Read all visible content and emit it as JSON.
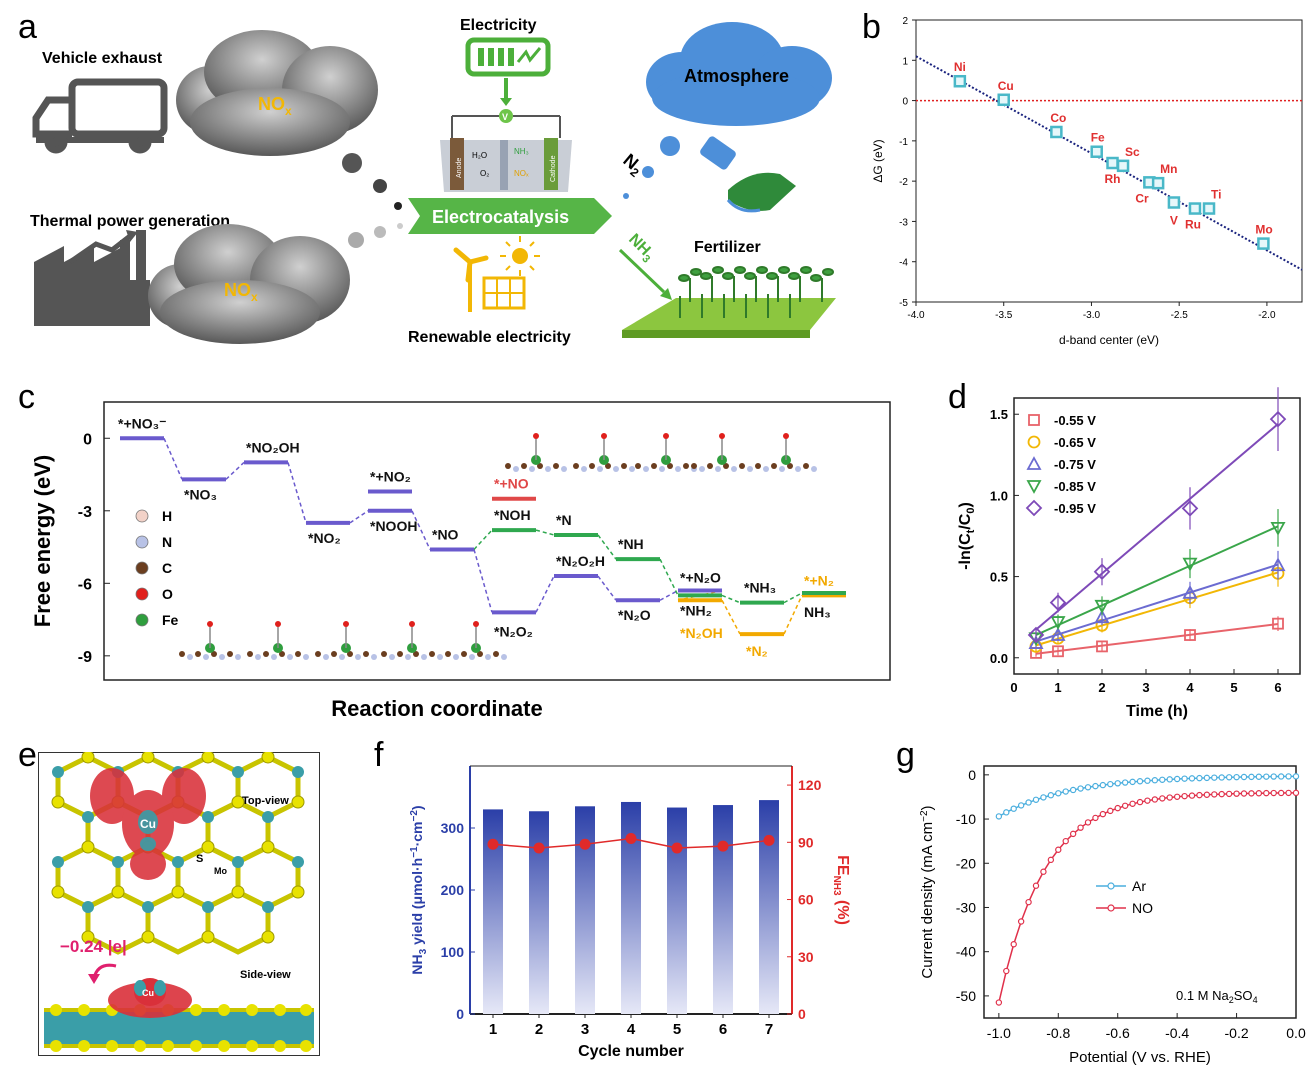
{
  "panels": {
    "a": "a",
    "b": "b",
    "c": "c",
    "d": "d",
    "e": "e",
    "f": "f",
    "g": "g"
  },
  "panel_a": {
    "vehicle": "Vehicle exhaust",
    "thermal": "Thermal power generation",
    "nox": "NO",
    "nox_sub": "x",
    "electricity": "Electricity",
    "electrocatalysis": "Electrocatalysis",
    "renewable": "Renewable electricity",
    "atmosphere": "Atmosphere",
    "fertilizer": "Fertilizer",
    "n2": "N",
    "n2_sub": "2",
    "nh3": "NH",
    "nh3_sub": "3",
    "cell_anode": "Anode",
    "cell_cathode": "Cathode",
    "cell_h2o": "H₂O",
    "cell_o2": "O₂",
    "cell_nh3": "NH₃",
    "cell_no": "NOₓ",
    "voltmeter": "V",
    "colors": {
      "cloud": "#6e6e6e",
      "banner": "#56b547",
      "nox_text": "#f2b705",
      "atmosphere": "#4d8fd9",
      "green": "#4caf3a"
    }
  },
  "chart_b": {
    "type": "scatter",
    "xlabel": "d-band center (eV)",
    "ylabel": "ΔG (eV)",
    "xlim": [
      -4.0,
      -1.8
    ],
    "ylim": [
      -5,
      2
    ],
    "xticks": [
      -4.0,
      -3.5,
      -3.0,
      -2.5,
      -2.0
    ],
    "xtick_labels": [
      "-4.0",
      "-3.5",
      "-3.0",
      "-2.5",
      "-2.0"
    ],
    "yticks": [
      -5,
      -4,
      -3,
      -2,
      -1,
      0,
      1,
      2
    ],
    "ytick_labels": [
      "-5",
      "-4",
      "-3",
      "-2",
      "-1",
      "0",
      "1",
      "2"
    ],
    "points": [
      {
        "label": "Ni",
        "x": -3.75,
        "y": 0.48
      },
      {
        "label": "Cu",
        "x": -3.5,
        "y": 0.02
      },
      {
        "label": "Co",
        "x": -3.2,
        "y": -0.78
      },
      {
        "label": "Fe",
        "x": -2.97,
        "y": -1.27
      },
      {
        "label": "Rh",
        "x": -2.88,
        "y": -1.55
      },
      {
        "label": "Sc",
        "x": -2.82,
        "y": -1.62
      },
      {
        "label": "Cr",
        "x": -2.67,
        "y": -2.03
      },
      {
        "label": "Mn",
        "x": -2.62,
        "y": -2.05
      },
      {
        "label": "V",
        "x": -2.53,
        "y": -2.53
      },
      {
        "label": "Ru",
        "x": -2.41,
        "y": -2.68
      },
      {
        "label": "Ti",
        "x": -2.33,
        "y": -2.68
      },
      {
        "label": "Mo",
        "x": -2.02,
        "y": -3.55
      }
    ],
    "fit_line": [
      [
        -4.0,
        1.1
      ],
      [
        -1.8,
        -4.2
      ]
    ],
    "reference_y": 0,
    "colors": {
      "point": "#49b8c8",
      "label": "#e03030",
      "fit": "#1a237e",
      "ref": "#e02020"
    }
  },
  "chart_c": {
    "type": "line",
    "xlabel": "Reaction coordinate",
    "ylabel": "Free energy (eV)",
    "ylim": [
      -10,
      1.5
    ],
    "yticks": [
      0,
      -3,
      -6,
      -9
    ],
    "ytick_labels": [
      "0",
      "-3",
      "-6",
      "-9"
    ],
    "legend": [
      {
        "label": "H",
        "color": "#f2d2c8"
      },
      {
        "label": "N",
        "color": "#b8c2e6"
      },
      {
        "label": "C",
        "color": "#6b3e1f"
      },
      {
        "label": "O",
        "color": "#e0201c"
      },
      {
        "label": "Fe",
        "color": "#2f9e3e"
      }
    ],
    "levels": [
      {
        "label": "*+NO₃⁻",
        "x": 1,
        "y": 0,
        "color": "#6a5acd"
      },
      {
        "label": "*NO₃",
        "x": 2,
        "y": -1.7,
        "color": "#6a5acd"
      },
      {
        "label": "*NO₂OH",
        "x": 3,
        "y": -1.0,
        "color": "#6a5acd"
      },
      {
        "label": "*NO₂",
        "x": 4,
        "y": -3.5,
        "color": "#6a5acd"
      },
      {
        "label": "*+NO₂",
        "x": 5,
        "y": -2.2,
        "color": "#6a5acd"
      },
      {
        "label": "*NOOH",
        "x": 5,
        "y": -3.0,
        "color": "#6a5acd"
      },
      {
        "label": "*NO",
        "x": 6,
        "y": -4.6,
        "color": "#6a5acd"
      },
      {
        "label": "*N₂O₂",
        "x": 7,
        "y": -7.2,
        "color": "#6a5acd"
      },
      {
        "label": "*+NO",
        "x": 7,
        "y": -2.5,
        "color": "#e04848"
      },
      {
        "label": "*NOH",
        "x": 7,
        "y": -3.8,
        "color": "#2fa84f"
      },
      {
        "label": "*N",
        "x": 8,
        "y": -4.0,
        "color": "#2fa84f"
      },
      {
        "label": "*N₂O₂H",
        "x": 8,
        "y": -5.7,
        "color": "#6a5acd"
      },
      {
        "label": "*NH",
        "x": 9,
        "y": -5.0,
        "color": "#2fa84f"
      },
      {
        "label": "*N₂O",
        "x": 9,
        "y": -6.7,
        "color": "#6a5acd"
      },
      {
        "label": "*+N₂O",
        "x": 10,
        "y": -6.3,
        "color": "#6a5acd"
      },
      {
        "label": "*NH₂",
        "x": 10,
        "y": -6.5,
        "color": "#2fa84f"
      },
      {
        "label": "*N₂OH",
        "x": 10,
        "y": -6.7,
        "color": "#f2a900"
      },
      {
        "label": "*NH₃",
        "x": 11,
        "y": -6.8,
        "color": "#2fa84f"
      },
      {
        "label": "*N₂",
        "x": 11,
        "y": -8.1,
        "color": "#f2a900"
      },
      {
        "label": "*+N₂",
        "x": 12,
        "y": -6.5,
        "color": "#f2a900"
      },
      {
        "label": "NH₃",
        "x": 12,
        "y": -6.4,
        "color": "#2fa84f"
      }
    ]
  },
  "chart_d": {
    "type": "scatter",
    "xlabel": "Time (h)",
    "ylabel": "-ln(C",
    "ylabel_t": "t",
    "ylabel_mid": "/C",
    "ylabel_0": "0",
    "ylabel_end": ")",
    "xlim": [
      0,
      6.5
    ],
    "ylim": [
      -0.1,
      1.6
    ],
    "xticks": [
      0,
      1,
      2,
      3,
      4,
      5,
      6
    ],
    "xtick_labels": [
      "0",
      "1",
      "2",
      "3",
      "4",
      "5",
      "6"
    ],
    "yticks": [
      0.0,
      0.5,
      1.0,
      1.5
    ],
    "ytick_labels": [
      "0.0",
      "0.5",
      "1.0",
      "1.5"
    ],
    "series": [
      {
        "name": "-0.55 V",
        "marker": "square",
        "color": "#e8636a",
        "x": [
          0.5,
          1,
          2,
          4,
          6
        ],
        "y": [
          0.03,
          0.04,
          0.07,
          0.14,
          0.21
        ]
      },
      {
        "name": "-0.65 V",
        "marker": "circle",
        "color": "#f2b705",
        "x": [
          0.5,
          1,
          2,
          4,
          6
        ],
        "y": [
          0.07,
          0.12,
          0.2,
          0.37,
          0.52
        ]
      },
      {
        "name": "-0.75 V",
        "marker": "triangle",
        "color": "#6b6bd1",
        "x": [
          0.5,
          1,
          2,
          4,
          6
        ],
        "y": [
          0.09,
          0.14,
          0.25,
          0.4,
          0.57
        ]
      },
      {
        "name": "-0.85 V",
        "marker": "triangle-down",
        "color": "#3aa64a",
        "x": [
          0.5,
          1,
          2,
          4,
          6
        ],
        "y": [
          0.12,
          0.22,
          0.32,
          0.58,
          0.8
        ]
      },
      {
        "name": "-0.95 V",
        "marker": "diamond",
        "color": "#7e4ab8",
        "x": [
          0.5,
          1,
          2,
          4,
          6
        ],
        "y": [
          0.14,
          0.34,
          0.53,
          0.92,
          1.47
        ]
      }
    ]
  },
  "panel_e": {
    "cu": "Cu",
    "s": "S",
    "mo": "Mo",
    "top": "Top-view",
    "side": "Side-view",
    "charge": "−0.24 |e|"
  },
  "chart_f": {
    "type": "bar",
    "xlabel": "Cycle number",
    "ylabel_left": "NH",
    "ylabel_left_sub": "3",
    "ylabel_left_rest": " yield (μmol·h",
    "ylabel_left_exp1": "−1",
    "ylabel_left_mid": "·cm",
    "ylabel_left_exp2": "−2",
    "ylabel_left_end": ")",
    "ylabel_right": "FE",
    "ylabel_right_sub": "NH3",
    "ylabel_right_end": " (%)",
    "categories": [
      "1",
      "2",
      "3",
      "4",
      "5",
      "6",
      "7"
    ],
    "left_ylim": [
      0,
      400
    ],
    "left_yticks": [
      0,
      100,
      200,
      300
    ],
    "right_ylim": [
      0,
      130
    ],
    "right_yticks": [
      0,
      30,
      60,
      90,
      120
    ],
    "series": [
      {
        "name": "NH₃ yield",
        "values": [
          330,
          327,
          335,
          342,
          333,
          337,
          345
        ],
        "color": "#2b3fa8"
      },
      {
        "name": "FE",
        "values": [
          89,
          87,
          89,
          92,
          87,
          88,
          91
        ],
        "color": "#e02a2a"
      }
    ]
  },
  "chart_g": {
    "type": "line",
    "xlabel": "Potential (V  vs. RHE)",
    "ylabel": "Current density (mA cm",
    "ylabel_exp": "−2",
    "ylabel_end": ")",
    "annotation": "0.1 M Na",
    "annotation_sub1": "2",
    "annotation_mid": "SO",
    "annotation_sub2": "4",
    "xlim": [
      -1.05,
      0.0
    ],
    "ylim": [
      -55,
      2
    ],
    "xticks": [
      -1.0,
      -0.8,
      -0.6,
      -0.4,
      -0.2,
      0.0
    ],
    "xtick_labels": [
      "-1.0",
      "-0.8",
      "-0.6",
      "-0.4",
      "-0.2",
      "0.0"
    ],
    "yticks": [
      0,
      -10,
      -20,
      -30,
      -40,
      -50
    ],
    "ytick_labels": [
      "0",
      "-10",
      "-20",
      "-30",
      "-40",
      "-50"
    ],
    "series": [
      {
        "name": "Ar",
        "color": "#4aaede"
      },
      {
        "name": "NO",
        "color": "#e0304a"
      }
    ]
  }
}
